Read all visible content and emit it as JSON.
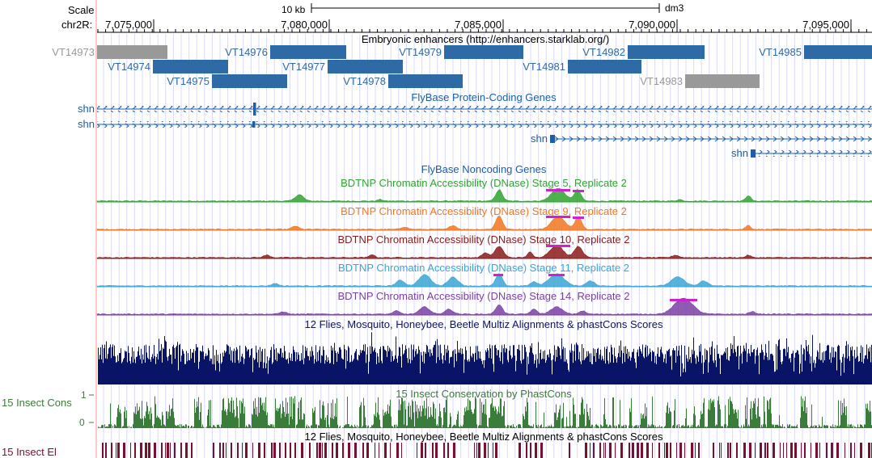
{
  "colors": {
    "vertical_guide": "#d8d8ff",
    "left_bar": "#ffc8c8",
    "enhancer_blue": "#2e6aa6",
    "enhancer_gray": "#999999",
    "gene_blue": "#1a5fa8",
    "stage5": "#2ea52e",
    "stage9": "#f0771f",
    "stage10": "#8b1a1a",
    "stage11": "#3aa5d6",
    "stage14": "#7a3fa5",
    "peak_highlight": "#d020d0",
    "multiz": "#0a1466",
    "phastcons": "#3a7d3a",
    "elements": "#7a1030"
  },
  "ruler": {
    "scale_label": "Scale",
    "scale_value": "10 kb",
    "assembly": "dm3",
    "chrom_label": "chr2R:",
    "ticks": [
      "7,075,000",
      "7,080,000",
      "7,085,000",
      "7,090,000",
      "7,095,000"
    ]
  },
  "enhancers": {
    "title": "Embryonic enhancers (http://enhancers.starklab.org/)",
    "items": [
      {
        "name": "VT14973",
        "status": "gray"
      },
      {
        "name": "VT14974",
        "status": "blue"
      },
      {
        "name": "VT14975",
        "status": "blue"
      },
      {
        "name": "VT14976",
        "status": "blue"
      },
      {
        "name": "VT14977",
        "status": "blue"
      },
      {
        "name": "VT14978",
        "status": "blue"
      },
      {
        "name": "VT14979",
        "status": "blue"
      },
      {
        "name": "VT14981",
        "status": "blue"
      },
      {
        "name": "VT14982",
        "status": "blue"
      },
      {
        "name": "VT14983",
        "status": "gray"
      },
      {
        "name": "VT14985",
        "status": "blue"
      }
    ]
  },
  "genes": {
    "title": "FlyBase Protein-Coding Genes",
    "items": [
      {
        "name": "shn"
      },
      {
        "name": "shn"
      },
      {
        "name": "shn"
      },
      {
        "name": "shn"
      }
    ]
  },
  "noncoding": {
    "title": "FlyBase Noncoding Genes"
  },
  "dnase_tracks": [
    {
      "title": "BDTNP Chromatin Accessibility (DNase) Stage 5, Replicate 2"
    },
    {
      "title": "BDTNP Chromatin Accessibility (DNase) Stage 9, Replicate 2"
    },
    {
      "title": "BDTNP Chromatin Accessibility (DNase) Stage 10, Replicate 2"
    },
    {
      "title": "BDTNP Chromatin Accessibility (DNase) Stage 11, Replicate 2"
    },
    {
      "title": "BDTNP Chromatin Accessibility (DNase) Stage 14, Replicate 2"
    }
  ],
  "multiz": {
    "title": "12 Flies, Mosquito, Honeybee, Beetle Multiz Alignments & phastCons Scores"
  },
  "phastcons": {
    "title": "15 Insect Conservation by PhastCons",
    "side_label": "15 Insect Cons",
    "y_max": "1",
    "y_min": "0"
  },
  "elements": {
    "title": "12 Flies, Mosquito, Honeybee, Beetle Multiz Alignments & phastCons Scores",
    "side_label": "15 Insect El"
  }
}
